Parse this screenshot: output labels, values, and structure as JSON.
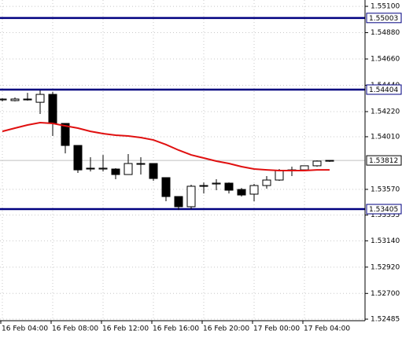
{
  "chart_data": {
    "type": "candlestick",
    "categories": [
      "16 Feb 04:00",
      null,
      null,
      null,
      "16 Feb 08:00",
      null,
      null,
      null,
      "16 Feb 12:00",
      null,
      null,
      null,
      "16 Feb 16:00",
      null,
      null,
      null,
      "16 Feb 20:00",
      null,
      null,
      null,
      "17 Feb 00:00",
      null,
      null,
      null,
      "17 Feb 04:00",
      null,
      null
    ],
    "open": [
      1.54318,
      1.54312,
      1.54325,
      1.54298,
      1.54364,
      1.54121,
      1.53937,
      1.53747,
      1.5374,
      1.5374,
      1.53694,
      1.53786,
      1.53786,
      1.53668,
      1.5351,
      1.53425,
      1.53596,
      1.53615,
      1.53622,
      1.53569,
      1.5353,
      1.53602,
      1.53648,
      1.53727,
      1.53733,
      1.53767,
      1.53806
    ],
    "high": [
      1.54331,
      1.54338,
      1.54377,
      1.54397,
      1.54384,
      1.54121,
      1.53937,
      1.53839,
      1.53858,
      1.53747,
      1.53865,
      1.53839,
      1.53786,
      1.53668,
      1.5351,
      1.53609,
      1.53628,
      1.53655,
      1.53628,
      1.53582,
      1.53615,
      1.53681,
      1.5374,
      1.5376,
      1.53767,
      1.53812,
      1.53812
    ],
    "low": [
      1.54305,
      1.54305,
      1.54312,
      1.542,
      1.54016,
      1.53871,
      1.53707,
      1.5372,
      1.5372,
      1.53655,
      1.53694,
      1.53694,
      1.53641,
      1.53471,
      1.53398,
      1.53405,
      1.53536,
      1.53563,
      1.53536,
      1.5351,
      1.53471,
      1.53576,
      1.53641,
      1.53681,
      1.53727,
      1.5376,
      1.538
    ],
    "close": [
      1.54325,
      1.54325,
      1.54318,
      1.54364,
      1.54121,
      1.53937,
      1.53733,
      1.5374,
      1.53747,
      1.53694,
      1.53786,
      1.5378,
      1.53661,
      1.5351,
      1.53425,
      1.53596,
      1.53602,
      1.53622,
      1.53563,
      1.53523,
      1.53602,
      1.53648,
      1.53727,
      1.53733,
      1.53767,
      1.53806,
      1.53812
    ],
    "up_color": "#ffffff",
    "down_color": "#000000",
    "moving_average": {
      "color": "#e01010",
      "values": [
        1.54055,
        1.54082,
        1.54108,
        1.54128,
        1.54121,
        1.54101,
        1.54082,
        1.54055,
        1.54036,
        1.54023,
        1.54016,
        1.54003,
        1.53983,
        1.53944,
        1.53898,
        1.53858,
        1.53832,
        1.53806,
        1.53786,
        1.5376,
        1.5374,
        1.53733,
        1.53727,
        1.53727,
        1.53727,
        1.53733,
        1.53733
      ]
    },
    "levels": [
      {
        "value": 1.55003,
        "label": "1.55003"
      },
      {
        "value": 1.54404,
        "label": "1.54404"
      },
      {
        "value": 1.53405,
        "label": "1.53405"
      }
    ],
    "level_color": "#000080",
    "last_price": {
      "value": 1.53812,
      "label": "1.53812"
    },
    "ylim": [
      1.52472,
      1.55153
    ],
    "yticks": [
      {
        "value": 1.551,
        "label": "1.55100"
      },
      {
        "value": 1.5488,
        "label": "1.54880"
      },
      {
        "value": 1.5466,
        "label": "1.54660"
      },
      {
        "value": 1.5444,
        "label": "1.54440"
      },
      {
        "value": 1.5422,
        "label": "1.54220"
      },
      {
        "value": 1.5401,
        "label": "1.54010"
      },
      {
        "value": 1.5357,
        "label": "1.53570"
      },
      {
        "value": 1.53355,
        "label": "1.53355"
      },
      {
        "value": 1.5314,
        "label": "1.53140"
      },
      {
        "value": 1.5292,
        "label": "1.52920"
      },
      {
        "value": 1.527,
        "label": "1.52700"
      },
      {
        "value": 1.52485,
        "label": "1.52485"
      }
    ],
    "grid": true
  }
}
